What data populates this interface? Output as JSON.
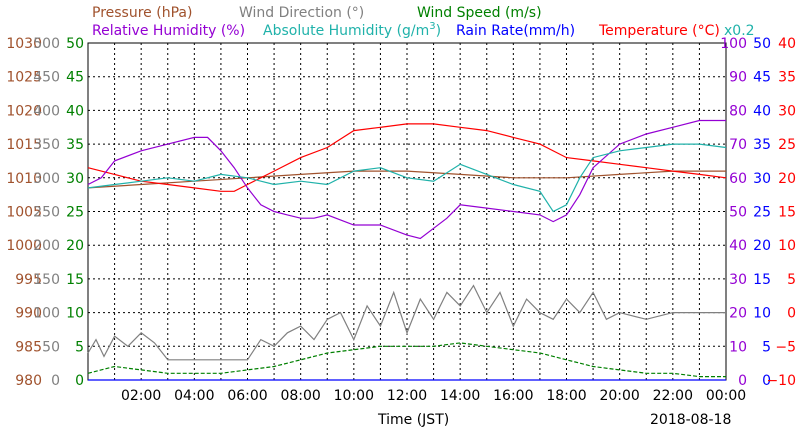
{
  "chart_data": {
    "type": "line",
    "date_label": "2018-08-18",
    "xlabel": "Time (JST)",
    "x_ticks": [
      "02:00",
      "04:00",
      "06:00",
      "08:00",
      "10:00",
      "12:00",
      "14:00",
      "16:00",
      "18:00",
      "20:00",
      "22:00",
      "00:00"
    ],
    "x_range_hours": [
      0,
      24
    ],
    "legend": {
      "pressure": "Pressure (hPa)",
      "wind_direction": "Wind Direction (°)",
      "wind_speed": "Wind Speed (m/s)",
      "rel_humidity": "Relative Humidity (%)",
      "abs_humidity_prefix": "Absolute Humidity (g/m",
      "abs_humidity_sup": "3",
      "abs_humidity_suffix": ")",
      "rain_rate": "Rain Rate(mm/h)",
      "temperature": "Temperature (°C)",
      "multiplier": "x0.2"
    },
    "axes": {
      "pressure": {
        "color": "#a0522d",
        "ticks": [
          "1030",
          "1025",
          "1020",
          "1015",
          "1010",
          "1005",
          "1000",
          "995",
          "990",
          "985",
          "980"
        ],
        "range": [
          980,
          1030
        ]
      },
      "wind_direction": {
        "color": "#808080",
        "ticks": [
          "500",
          "450",
          "400",
          "350",
          "300",
          "250",
          "200",
          "150",
          "100",
          "50",
          "0"
        ],
        "range": [
          0,
          500
        ]
      },
      "wind_speed": {
        "color": "#008000",
        "ticks": [
          "50",
          "45",
          "40",
          "35",
          "30",
          "25",
          "20",
          "15",
          "10",
          "5",
          "0"
        ],
        "range": [
          0,
          50
        ]
      },
      "rel_humidity": {
        "color": "#9400d3",
        "ticks": [
          "100",
          "90",
          "80",
          "70",
          "60",
          "50",
          "40",
          "30",
          "20",
          "10",
          "0"
        ],
        "range": [
          0,
          100
        ]
      },
      "rain_rate": {
        "color": "#0000ff",
        "ticks": [
          "50",
          "45",
          "40",
          "35",
          "30",
          "25",
          "20",
          "15",
          "10",
          "5",
          "0"
        ],
        "range": [
          0,
          50
        ]
      },
      "temperature": {
        "color": "#ff0000",
        "ticks": [
          "40",
          "35",
          "30",
          "25",
          "20",
          "15",
          "10",
          "5",
          "0",
          "−5",
          "−10"
        ],
        "range": [
          -10,
          40
        ]
      }
    },
    "grid": true,
    "series": [
      {
        "name": "Pressure (hPa)",
        "color": "#a0522d",
        "x": [
          0,
          2,
          4,
          6,
          8,
          10,
          12,
          14,
          16,
          18,
          20,
          22,
          24
        ],
        "y": [
          1008.5,
          1009,
          1009.5,
          1010,
          1010.5,
          1011,
          1011,
          1010.5,
          1010,
          1010,
          1010.5,
          1011,
          1011
        ]
      },
      {
        "name": "Temperature (°C)",
        "color": "#ff0000",
        "x": [
          0,
          1,
          2,
          3,
          4,
          5,
          5.5,
          6,
          6.5,
          7,
          8,
          9,
          10,
          11,
          12,
          13,
          14,
          15,
          16,
          17,
          18,
          19,
          20,
          21,
          22,
          23,
          24
        ],
        "y": [
          21.5,
          20.5,
          19.5,
          19,
          18.5,
          18,
          18,
          19,
          20,
          21,
          23,
          24.5,
          27,
          27.5,
          28,
          28,
          27.5,
          27,
          26,
          25,
          23,
          22.5,
          22,
          21.5,
          21,
          20.5,
          20
        ]
      },
      {
        "name": "Relative Humidity (%)",
        "color": "#9400d3",
        "x": [
          0,
          0.5,
          1,
          2,
          3,
          4,
          4.5,
          5,
          5.5,
          6,
          6.5,
          7,
          7.5,
          8,
          8.5,
          9,
          10,
          11,
          12,
          12.5,
          13,
          13.5,
          14,
          15,
          16,
          17,
          17.5,
          18,
          18.5,
          19,
          20,
          21,
          22,
          23,
          24
        ],
        "y": [
          58,
          60,
          65,
          68,
          70,
          72,
          72,
          68,
          63,
          57,
          52,
          50,
          49,
          48,
          48,
          49,
          46,
          46,
          43,
          42,
          45,
          48,
          52,
          51,
          50,
          49,
          47,
          49,
          55,
          63,
          70,
          73,
          75,
          77,
          77
        ]
      },
      {
        "name": "Absolute Humidity (g/m3)",
        "color": "#20b2aa",
        "x": [
          0,
          1,
          2,
          3,
          4,
          5,
          6,
          7,
          8,
          9,
          10,
          11,
          12,
          13,
          14,
          15,
          16,
          17,
          17.5,
          18,
          18.5,
          19,
          20,
          21,
          22,
          23,
          24
        ],
        "y": [
          57,
          58,
          59,
          60,
          59,
          61,
          60,
          58,
          59,
          58,
          62,
          63,
          60,
          59,
          64,
          61,
          58,
          56,
          50,
          52,
          60,
          66,
          68,
          69,
          70,
          70,
          69
        ]
      },
      {
        "name": "Wind Direction (°)",
        "color": "#808080",
        "x": [
          0,
          0.3,
          0.6,
          1,
          1.5,
          2,
          2.5,
          3,
          4,
          5,
          6,
          6.5,
          7,
          7.5,
          8,
          8.5,
          9,
          9.5,
          10,
          10.5,
          11,
          11.5,
          12,
          12.5,
          13,
          13.5,
          14,
          14.5,
          15,
          15.5,
          16,
          16.5,
          17,
          17.5,
          18,
          18.5,
          19,
          19.5,
          20,
          21,
          22,
          23,
          24
        ],
        "y": [
          40,
          60,
          35,
          65,
          50,
          70,
          55,
          30,
          30,
          30,
          30,
          60,
          50,
          70,
          80,
          60,
          90,
          100,
          60,
          110,
          80,
          130,
          70,
          120,
          90,
          130,
          110,
          140,
          100,
          130,
          80,
          120,
          100,
          90,
          120,
          100,
          130,
          90,
          100,
          90,
          100,
          100,
          100
        ]
      },
      {
        "name": "Wind Speed (m/s)",
        "color": "#008000",
        "x": [
          0,
          1,
          2,
          3,
          4,
          5,
          6,
          7,
          8,
          9,
          10,
          11,
          12,
          13,
          14,
          15,
          16,
          17,
          18,
          19,
          20,
          21,
          22,
          23,
          24
        ],
        "y": [
          1,
          2,
          1.5,
          1,
          1,
          1,
          1.5,
          2,
          3,
          4,
          4.5,
          5,
          5,
          5,
          5.5,
          5,
          4.5,
          4,
          3,
          2,
          1.5,
          1,
          1,
          0.5,
          0.5
        ]
      },
      {
        "name": "Rain Rate(mm/h)",
        "color": "#0000ff",
        "x": [
          0,
          24
        ],
        "y": [
          0,
          0
        ]
      }
    ]
  }
}
